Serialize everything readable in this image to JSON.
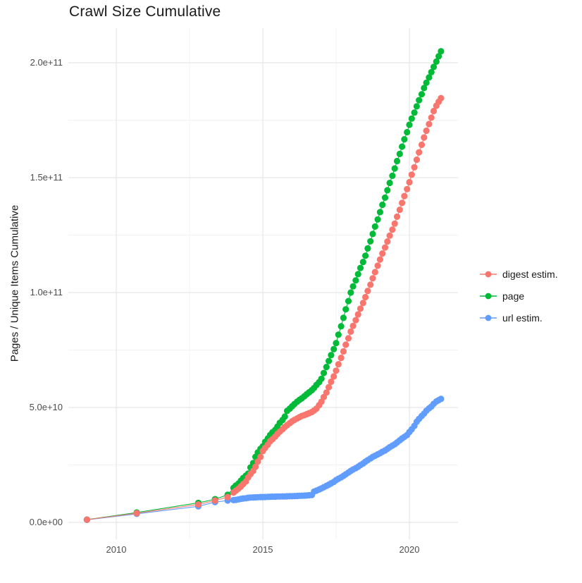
{
  "chart": {
    "title": "Crawl Size Cumulative",
    "y_axis_title": "Pages / Unique Items Cumulative",
    "axes": {
      "x_ticks": [
        {
          "value": 2010,
          "label": "2010"
        },
        {
          "value": 2015,
          "label": "2015"
        },
        {
          "value": 2020,
          "label": "2020"
        }
      ],
      "x_minor": [
        2012.5,
        2017.5
      ],
      "y_ticks": [
        {
          "value": 0,
          "label": "0.0e+00"
        },
        {
          "value": 50,
          "label": "5.0e+10"
        },
        {
          "value": 100,
          "label": "1.0e+11"
        },
        {
          "value": 150,
          "label": "1.5e+11"
        },
        {
          "value": 200,
          "label": "2.0e+11"
        }
      ],
      "y_minor": [
        25,
        75,
        125,
        175
      ]
    },
    "legend": [
      {
        "label": "digest estim.",
        "color": "#F8766D"
      },
      {
        "label": "page",
        "color": "#00BA38"
      },
      {
        "label": "url estim.",
        "color": "#619CFF"
      }
    ],
    "grid_major_color": "#E7E7E7",
    "grid_minor_color": "#F2F2F2"
  },
  "chart_data": {
    "type": "scatter",
    "title": "Crawl Size Cumulative",
    "xlabel": "",
    "ylabel": "Pages / Unique Items Cumulative",
    "x_unit": "year (decimal)",
    "y_unit": "count, in billions (1e9); axis shows scientific notation",
    "xlim": [
      2008.4,
      2021.7
    ],
    "ylim_billions": [
      0,
      215
    ],
    "legend_position": "right",
    "grid": true,
    "marker": "point-with-line",
    "series": [
      {
        "name": "digest estim.",
        "color": "#F8766D",
        "points": [
          [
            2009.0,
            1.2
          ],
          [
            2010.7,
            4.0
          ],
          [
            2012.8,
            7.8
          ],
          [
            2013.37,
            9.5
          ],
          [
            2013.8,
            11.0
          ],
          [
            2014.0,
            13.0
          ],
          [
            2014.08,
            13.8
          ],
          [
            2014.17,
            14.7
          ],
          [
            2014.25,
            15.6
          ],
          [
            2014.33,
            16.7
          ],
          [
            2014.42,
            17.8
          ],
          [
            2014.5,
            19.6
          ],
          [
            2014.58,
            21.0
          ],
          [
            2014.67,
            22.4
          ],
          [
            2014.75,
            24.2
          ],
          [
            2014.83,
            26.4
          ],
          [
            2014.92,
            28.5
          ],
          [
            2015.0,
            31.0
          ],
          [
            2015.08,
            32.4
          ],
          [
            2015.17,
            33.8
          ],
          [
            2015.25,
            35.3
          ],
          [
            2015.33,
            36.2
          ],
          [
            2015.42,
            37.3
          ],
          [
            2015.5,
            38.5
          ],
          [
            2015.58,
            39.5
          ],
          [
            2015.67,
            40.5
          ],
          [
            2015.75,
            41.5
          ],
          [
            2015.83,
            42.3
          ],
          [
            2015.92,
            43.2
          ],
          [
            2016.0,
            44.0
          ],
          [
            2016.08,
            44.6
          ],
          [
            2016.17,
            45.2
          ],
          [
            2016.25,
            45.8
          ],
          [
            2016.33,
            46.3
          ],
          [
            2016.42,
            46.7
          ],
          [
            2016.5,
            47.1
          ],
          [
            2016.58,
            47.5
          ],
          [
            2016.67,
            48.0
          ],
          [
            2016.75,
            48.7
          ],
          [
            2016.83,
            49.5
          ],
          [
            2016.92,
            51.0
          ],
          [
            2017.0,
            52.5
          ],
          [
            2017.08,
            54.5
          ],
          [
            2017.17,
            56.5
          ],
          [
            2017.25,
            58.8
          ],
          [
            2017.33,
            61.2
          ],
          [
            2017.42,
            63.5
          ],
          [
            2017.5,
            66.0
          ],
          [
            2017.58,
            68.8
          ],
          [
            2017.67,
            71.6
          ],
          [
            2017.75,
            74.4
          ],
          [
            2017.83,
            77.3
          ],
          [
            2017.92,
            80.1
          ],
          [
            2018.0,
            83.0
          ],
          [
            2018.08,
            85.5
          ],
          [
            2018.17,
            88.0
          ],
          [
            2018.25,
            90.5
          ],
          [
            2018.33,
            93.0
          ],
          [
            2018.42,
            95.5
          ],
          [
            2018.5,
            98.0
          ],
          [
            2018.58,
            100.7
          ],
          [
            2018.67,
            103.4
          ],
          [
            2018.75,
            106.2
          ],
          [
            2018.83,
            108.9
          ],
          [
            2018.92,
            111.7
          ],
          [
            2019.0,
            114.4
          ],
          [
            2019.08,
            117.0
          ],
          [
            2019.17,
            119.6
          ],
          [
            2019.25,
            122.2
          ],
          [
            2019.33,
            124.8
          ],
          [
            2019.42,
            127.4
          ],
          [
            2019.5,
            130.0
          ],
          [
            2019.58,
            133.0
          ],
          [
            2019.67,
            136.0
          ],
          [
            2019.75,
            139.0
          ],
          [
            2019.83,
            142.0
          ],
          [
            2019.92,
            145.0
          ],
          [
            2020.0,
            148.0
          ],
          [
            2020.08,
            151.3
          ],
          [
            2020.17,
            154.5
          ],
          [
            2020.25,
            157.8
          ],
          [
            2020.33,
            161.0
          ],
          [
            2020.42,
            164.3
          ],
          [
            2020.5,
            167.5
          ],
          [
            2020.58,
            170.4
          ],
          [
            2020.67,
            173.3
          ],
          [
            2020.75,
            176.1
          ],
          [
            2020.83,
            179.0
          ],
          [
            2020.92,
            181.3
          ],
          [
            2021.0,
            183.0
          ],
          [
            2021.08,
            184.6
          ]
        ]
      },
      {
        "name": "page",
        "color": "#00BA38",
        "points": [
          [
            2009.0,
            1.2
          ],
          [
            2010.7,
            4.3
          ],
          [
            2012.8,
            8.5
          ],
          [
            2013.37,
            10.1
          ],
          [
            2013.8,
            12.0
          ],
          [
            2014.0,
            15.0
          ],
          [
            2014.08,
            16.0
          ],
          [
            2014.17,
            16.9
          ],
          [
            2014.25,
            18.1
          ],
          [
            2014.33,
            19.3
          ],
          [
            2014.42,
            20.3
          ],
          [
            2014.5,
            21.2
          ],
          [
            2014.58,
            23.9
          ],
          [
            2014.67,
            25.8
          ],
          [
            2014.75,
            28.5
          ],
          [
            2014.83,
            30.4
          ],
          [
            2014.92,
            32.0
          ],
          [
            2015.0,
            33.1
          ],
          [
            2015.08,
            35.0
          ],
          [
            2015.17,
            36.5
          ],
          [
            2015.25,
            38.0
          ],
          [
            2015.33,
            39.2
          ],
          [
            2015.42,
            40.2
          ],
          [
            2015.5,
            41.7
          ],
          [
            2015.58,
            43.3
          ],
          [
            2015.67,
            44.5
          ],
          [
            2015.75,
            46.0
          ],
          [
            2015.83,
            48.5
          ],
          [
            2015.92,
            49.5
          ],
          [
            2016.0,
            50.5
          ],
          [
            2016.08,
            51.5
          ],
          [
            2016.17,
            52.5
          ],
          [
            2016.25,
            53.3
          ],
          [
            2016.33,
            54.0
          ],
          [
            2016.42,
            54.9
          ],
          [
            2016.5,
            55.8
          ],
          [
            2016.58,
            56.6
          ],
          [
            2016.67,
            57.5
          ],
          [
            2016.75,
            58.5
          ],
          [
            2016.83,
            59.8
          ],
          [
            2016.92,
            61.0
          ],
          [
            2017.0,
            62.5
          ],
          [
            2017.08,
            65.0
          ],
          [
            2017.17,
            67.6
          ],
          [
            2017.25,
            70.2
          ],
          [
            2017.33,
            72.8
          ],
          [
            2017.42,
            75.4
          ],
          [
            2017.5,
            78.0
          ],
          [
            2017.58,
            81.7
          ],
          [
            2017.67,
            85.3
          ],
          [
            2017.75,
            89.0
          ],
          [
            2017.83,
            92.7
          ],
          [
            2017.92,
            96.3
          ],
          [
            2018.0,
            100.0
          ],
          [
            2018.08,
            102.7
          ],
          [
            2018.17,
            105.3
          ],
          [
            2018.25,
            108.0
          ],
          [
            2018.33,
            110.7
          ],
          [
            2018.42,
            113.3
          ],
          [
            2018.5,
            116.0
          ],
          [
            2018.58,
            119.2
          ],
          [
            2018.67,
            122.3
          ],
          [
            2018.75,
            125.5
          ],
          [
            2018.83,
            128.7
          ],
          [
            2018.92,
            131.8
          ],
          [
            2019.0,
            135.0
          ],
          [
            2019.08,
            138.2
          ],
          [
            2019.17,
            141.3
          ],
          [
            2019.25,
            144.5
          ],
          [
            2019.33,
            147.7
          ],
          [
            2019.42,
            150.8
          ],
          [
            2019.5,
            154.0
          ],
          [
            2019.58,
            157.2
          ],
          [
            2019.67,
            160.3
          ],
          [
            2019.75,
            163.5
          ],
          [
            2019.83,
            166.7
          ],
          [
            2019.92,
            169.8
          ],
          [
            2020.0,
            173.0
          ],
          [
            2020.08,
            175.7
          ],
          [
            2020.17,
            178.3
          ],
          [
            2020.25,
            181.0
          ],
          [
            2020.33,
            183.7
          ],
          [
            2020.42,
            186.3
          ],
          [
            2020.5,
            189.0
          ],
          [
            2020.58,
            191.3
          ],
          [
            2020.67,
            193.6
          ],
          [
            2020.75,
            195.9
          ],
          [
            2020.83,
            198.2
          ],
          [
            2020.92,
            200.5
          ],
          [
            2021.0,
            202.8
          ],
          [
            2021.08,
            205.0
          ]
        ]
      },
      {
        "name": "url estim.",
        "color": "#619CFF",
        "points": [
          [
            2009.0,
            1.1
          ],
          [
            2010.7,
            3.7
          ],
          [
            2012.8,
            7.0
          ],
          [
            2013.37,
            8.8
          ],
          [
            2013.8,
            9.5
          ],
          [
            2014.0,
            9.7
          ],
          [
            2014.08,
            9.8
          ],
          [
            2014.17,
            10.0
          ],
          [
            2014.25,
            10.2
          ],
          [
            2014.33,
            10.4
          ],
          [
            2014.42,
            10.5
          ],
          [
            2014.5,
            10.7
          ],
          [
            2014.58,
            10.8
          ],
          [
            2014.67,
            10.85
          ],
          [
            2014.75,
            10.9
          ],
          [
            2014.83,
            10.95
          ],
          [
            2014.92,
            11.0
          ],
          [
            2015.0,
            11.0
          ],
          [
            2015.08,
            11.05
          ],
          [
            2015.17,
            11.1
          ],
          [
            2015.25,
            11.15
          ],
          [
            2015.33,
            11.2
          ],
          [
            2015.42,
            11.2
          ],
          [
            2015.5,
            11.25
          ],
          [
            2015.58,
            11.25
          ],
          [
            2015.67,
            11.3
          ],
          [
            2015.75,
            11.3
          ],
          [
            2015.83,
            11.35
          ],
          [
            2015.92,
            11.4
          ],
          [
            2016.0,
            11.4
          ],
          [
            2016.08,
            11.45
          ],
          [
            2016.17,
            11.5
          ],
          [
            2016.25,
            11.55
          ],
          [
            2016.33,
            11.6
          ],
          [
            2016.42,
            11.65
          ],
          [
            2016.5,
            11.7
          ],
          [
            2016.58,
            11.8
          ],
          [
            2016.67,
            11.9
          ],
          [
            2016.75,
            13.4
          ],
          [
            2016.83,
            13.8
          ],
          [
            2016.92,
            14.3
          ],
          [
            2017.0,
            14.8
          ],
          [
            2017.08,
            15.3
          ],
          [
            2017.17,
            15.9
          ],
          [
            2017.25,
            16.4
          ],
          [
            2017.33,
            17.0
          ],
          [
            2017.42,
            17.6
          ],
          [
            2017.5,
            18.4
          ],
          [
            2017.58,
            19.0
          ],
          [
            2017.67,
            19.6
          ],
          [
            2017.75,
            20.2
          ],
          [
            2017.83,
            20.9
          ],
          [
            2017.92,
            21.7
          ],
          [
            2018.0,
            22.4
          ],
          [
            2018.08,
            23.0
          ],
          [
            2018.17,
            23.6
          ],
          [
            2018.25,
            24.2
          ],
          [
            2018.33,
            24.9
          ],
          [
            2018.42,
            25.6
          ],
          [
            2018.5,
            26.4
          ],
          [
            2018.58,
            27.1
          ],
          [
            2018.67,
            27.8
          ],
          [
            2018.75,
            28.5
          ],
          [
            2018.83,
            29.0
          ],
          [
            2018.92,
            29.6
          ],
          [
            2019.0,
            30.1
          ],
          [
            2019.08,
            30.7
          ],
          [
            2019.17,
            31.3
          ],
          [
            2019.25,
            32.0
          ],
          [
            2019.33,
            32.7
          ],
          [
            2019.42,
            33.4
          ],
          [
            2019.5,
            34.0
          ],
          [
            2019.58,
            34.8
          ],
          [
            2019.67,
            35.7
          ],
          [
            2019.75,
            36.5
          ],
          [
            2019.83,
            37.2
          ],
          [
            2019.92,
            38.0
          ],
          [
            2020.0,
            39.3
          ],
          [
            2020.08,
            40.5
          ],
          [
            2020.17,
            42.0
          ],
          [
            2020.25,
            43.8
          ],
          [
            2020.33,
            45.0
          ],
          [
            2020.42,
            46.3
          ],
          [
            2020.5,
            47.3
          ],
          [
            2020.58,
            48.6
          ],
          [
            2020.67,
            49.6
          ],
          [
            2020.75,
            50.4
          ],
          [
            2020.83,
            51.6
          ],
          [
            2020.92,
            52.6
          ],
          [
            2021.0,
            53.2
          ],
          [
            2021.08,
            53.7
          ]
        ]
      }
    ],
    "draw_order_back_to_front": [
      "url estim.",
      "page",
      "digest estim."
    ]
  }
}
